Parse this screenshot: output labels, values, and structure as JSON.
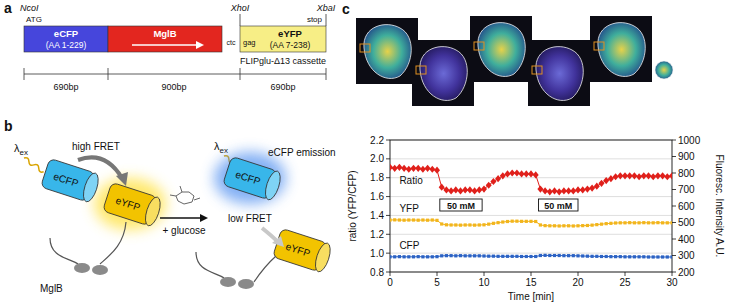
{
  "panel_labels": [
    "a",
    "b",
    "c"
  ],
  "panel_a": {
    "sites": {
      "ncoi": "NcoI",
      "atg": "ATG",
      "xhoi": "XhoI",
      "xbai": "XbaI",
      "stop": "stop"
    },
    "segments": [
      {
        "name": "eCFP",
        "detail": "(AA 1-229)",
        "color": "#4646dc",
        "length": "690bp"
      },
      {
        "name": "MglB",
        "color": "#e3261f",
        "length": "900bp"
      },
      {
        "name": "eYFP",
        "detail": "(AA 7-238)",
        "color": "#f7ee86",
        "length": "690bp"
      }
    ],
    "linker": [
      "ctc",
      "gag"
    ],
    "cassette": "FLIPglu-Δ13 cassette"
  },
  "panel_b": {
    "excitation_symbol": "λ",
    "excitation_sub": "ex",
    "donor": "eCFP",
    "acceptor": "eYFP",
    "sensor": "MglB",
    "high": "high FRET",
    "low": "low FRET",
    "ligand": "+ glucose",
    "emission": "eCFP emission"
  },
  "chart_data": {
    "type": "line",
    "x": [
      0,
      0.5,
      1,
      1.5,
      2,
      2.5,
      3,
      3.5,
      4,
      4.5,
      5,
      5.5,
      6,
      6.5,
      7,
      7.5,
      8,
      8.5,
      9,
      9.5,
      10,
      10.5,
      11,
      11.5,
      12,
      12.5,
      13,
      13.5,
      14,
      14.5,
      15,
      15.5,
      16,
      16.5,
      17,
      17.5,
      18,
      18.5,
      19,
      19.5,
      20,
      20.5,
      21,
      21.5,
      22,
      22.5,
      23,
      23.5,
      24,
      24.5,
      25,
      25.5,
      26,
      26.5,
      27,
      27.5,
      28,
      28.5,
      29,
      29.5,
      30
    ],
    "xlim": [
      0,
      30
    ],
    "xticks": [
      0,
      5,
      10,
      15,
      20,
      25,
      30
    ],
    "x_label": "Time [min]",
    "ylim": [
      0.8,
      2.2
    ],
    "yticks": [
      0.8,
      {
        "value": 1,
        "label": "1.0"
      },
      1.2,
      1.4,
      1.6,
      1.8,
      {
        "value": 2,
        "label": "2.0"
      },
      2.2
    ],
    "y_label": "ratio (YFP/CFP)",
    "y2lim": [
      200,
      1000
    ],
    "y2ticks": [
      200,
      300,
      400,
      500,
      600,
      700,
      800,
      900,
      1000
    ],
    "y2_label": "Fluoresc. Intensity A.U.",
    "grid": true,
    "series": [
      {
        "name": "Ratio",
        "color": "#e0201b",
        "marker": "diamond",
        "values": [
          1.91,
          1.9,
          1.91,
          1.9,
          1.89,
          1.9,
          1.9,
          1.89,
          1.9,
          1.89,
          1.88,
          1.7,
          1.67,
          1.66,
          1.67,
          1.66,
          1.67,
          1.67,
          1.66,
          1.67,
          1.68,
          1.72,
          1.76,
          1.79,
          1.82,
          1.84,
          1.85,
          1.85,
          1.84,
          1.84,
          1.84,
          1.83,
          1.68,
          1.66,
          1.65,
          1.66,
          1.65,
          1.66,
          1.66,
          1.66,
          1.67,
          1.67,
          1.68,
          1.69,
          1.71,
          1.74,
          1.77,
          1.79,
          1.81,
          1.82,
          1.82,
          1.82,
          1.82,
          1.81,
          1.82,
          1.82,
          1.81,
          1.82,
          1.82,
          1.81,
          1.82
        ]
      },
      {
        "name": "YFP",
        "color": "#f2b51c",
        "marker": "square",
        "axis": "y2",
        "values": [
          515,
          516,
          515,
          514,
          515,
          515,
          514,
          515,
          514,
          515,
          513,
          491,
          486,
          485,
          485,
          484,
          485,
          485,
          484,
          485,
          486,
          490,
          495,
          499,
          503,
          506,
          508,
          508,
          507,
          507,
          507,
          506,
          485,
          481,
          480,
          480,
          479,
          480,
          480,
          479,
          480,
          481,
          482,
          484,
          487,
          490,
          493,
          495,
          497,
          498,
          498,
          499,
          498,
          498,
          499,
          498,
          498,
          499,
          498,
          498,
          498
        ]
      },
      {
        "name": "CFP",
        "color": "#2b62c4",
        "marker": "square",
        "axis": "y2",
        "values": [
          292,
          292,
          293,
          292,
          292,
          292,
          293,
          292,
          292,
          292,
          293,
          298,
          299,
          299,
          298,
          299,
          298,
          298,
          298,
          298,
          297,
          296,
          296,
          295,
          295,
          295,
          295,
          295,
          294,
          294,
          294,
          294,
          300,
          301,
          300,
          300,
          300,
          299,
          299,
          299,
          298,
          297,
          296,
          295,
          295,
          294,
          294,
          293,
          293,
          293,
          292,
          292,
          292,
          292,
          292,
          291,
          291,
          291,
          291,
          291,
          291
        ]
      }
    ],
    "annotations": [
      {
        "text": "50 mM",
        "start": 5.3,
        "end": 9.8
      },
      {
        "text": "50 mM",
        "start": 15.8,
        "end": 20
      }
    ]
  }
}
